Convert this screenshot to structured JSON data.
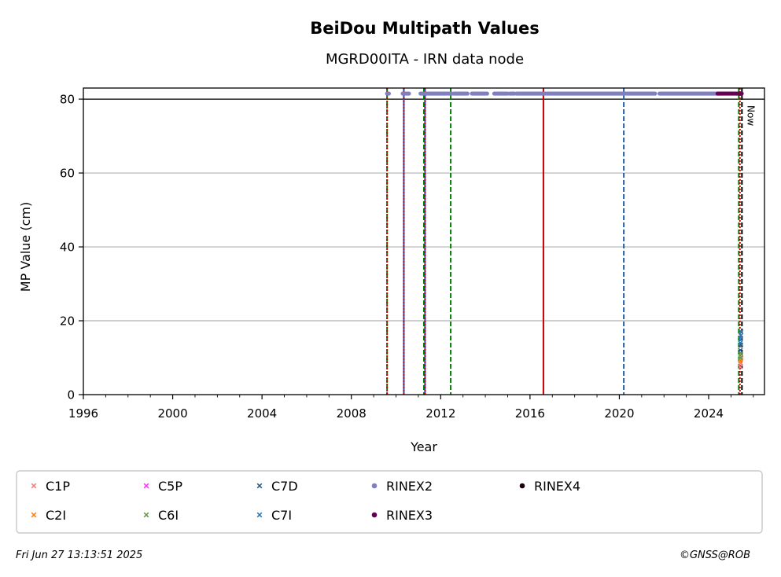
{
  "chart_data": {
    "type": "scatter",
    "title": "BeiDou Multipath Values",
    "subtitle": "MGRD00ITA - IRN data node",
    "xlabel": "Year",
    "ylabel": "MP Value (cm)",
    "xlim": [
      1996,
      2026.5
    ],
    "ylim": [
      0,
      83
    ],
    "x_ticks": [
      "1996",
      "2000",
      "2004",
      "2008",
      "2012",
      "2016",
      "2020",
      "2024"
    ],
    "y_ticks": [
      "0",
      "20",
      "40",
      "60",
      "80"
    ],
    "grid": "horizontal",
    "reference_line_y": 80,
    "now_label": "Now",
    "now_x": 2025.49,
    "event_lines": [
      {
        "x": 2009.6,
        "style": "dashed",
        "color": "#008000"
      },
      {
        "x": 2009.6,
        "style": "dotted",
        "color": "#c00000"
      },
      {
        "x": 2010.35,
        "style": "solid",
        "color": "#1f4fd0"
      },
      {
        "x": 2010.35,
        "style": "dotted",
        "color": "#c00000"
      },
      {
        "x": 2011.25,
        "style": "dashed",
        "color": "#008000"
      },
      {
        "x": 2011.3,
        "style": "solid",
        "color": "#1f4fd0"
      },
      {
        "x": 2011.3,
        "style": "dotted",
        "color": "#c00000"
      },
      {
        "x": 2012.45,
        "style": "dashed",
        "color": "#008000"
      },
      {
        "x": 2016.6,
        "style": "solid",
        "color": "#c00000"
      },
      {
        "x": 2020.2,
        "style": "dashed",
        "color": "#1f5fa8"
      },
      {
        "x": 2025.35,
        "style": "dashed",
        "color": "#008000"
      },
      {
        "x": 2025.4,
        "style": "dotted",
        "color": "#c00000"
      }
    ],
    "series": [
      {
        "name": "C1P",
        "marker": "x",
        "color": "#f08080",
        "x": [
          2025.42,
          2025.43,
          2025.44,
          2025.45
        ],
        "y": [
          7.5,
          8.5,
          9.5,
          10
        ]
      },
      {
        "name": "C2I",
        "marker": "x",
        "color": "#ff7f0e",
        "x": [
          2025.42,
          2025.44
        ],
        "y": [
          9,
          9.8
        ]
      },
      {
        "name": "C5P",
        "marker": "x",
        "color": "#ff33ff",
        "x": [],
        "y": []
      },
      {
        "name": "C6I",
        "marker": "x",
        "color": "#6a994e",
        "x": [
          2025.42,
          2025.44
        ],
        "y": [
          10,
          11
        ]
      },
      {
        "name": "C7D",
        "marker": "x",
        "color": "#2a5d8f",
        "x": [
          2025.42,
          2025.44
        ],
        "y": [
          12,
          13.5
        ]
      },
      {
        "name": "C7I",
        "marker": "x",
        "color": "#2c78b5",
        "x": [
          2025.42,
          2025.43,
          2025.44,
          2025.45
        ],
        "y": [
          14,
          15,
          16,
          17
        ]
      },
      {
        "name": "RINEX2",
        "marker": "dot",
        "color": "#8080c0",
        "y_constant": 81.5,
        "segments": [
          [
            2009.6,
            2009.7
          ],
          [
            2010.3,
            2010.6
          ],
          [
            2011.1,
            2012.5
          ],
          [
            2012.6,
            2013.2
          ],
          [
            2013.4,
            2014.1
          ],
          [
            2014.4,
            2015.0
          ],
          [
            2015.1,
            2015.3
          ],
          [
            2015.4,
            2021.6
          ],
          [
            2021.8,
            2024.5
          ]
        ]
      },
      {
        "name": "RINEX3",
        "marker": "dot",
        "color": "#660055",
        "y_constant": 81.5,
        "segments": [
          [
            2024.4,
            2025.5
          ]
        ]
      },
      {
        "name": "RINEX4",
        "marker": "dot",
        "color": "#1a0010",
        "x": [],
        "y": []
      }
    ]
  },
  "footer": {
    "timestamp": "Fri Jun 27 13:13:51 2025",
    "credit": "©GNSS@ROB"
  }
}
